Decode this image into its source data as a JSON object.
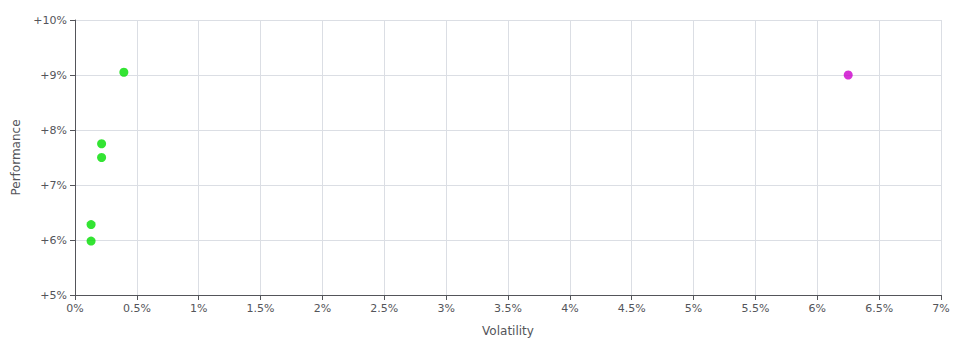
{
  "chart_data": {
    "type": "scatter",
    "xlabel": "Volatility",
    "ylabel": "Performance",
    "x": [
      0.00395,
      0.00215,
      0.00215,
      0.0013,
      0.0013,
      0.0625
    ],
    "values": [
      0.0905,
      0.0775,
      0.075,
      0.0628,
      0.0598,
      0.09
    ],
    "colors": [
      "#00dd00",
      "#00dd00",
      "#00dd00",
      "#00dd00",
      "#00dd00",
      "#cc00cc"
    ],
    "xlim": [
      0.0,
      0.07
    ],
    "xticks": [
      {
        "value": 0.0,
        "label": "0%"
      },
      {
        "value": 0.005,
        "label": "0.5%"
      },
      {
        "value": 0.01,
        "label": "1%"
      },
      {
        "value": 0.015,
        "label": "1.5%"
      },
      {
        "value": 0.02,
        "label": "2%"
      },
      {
        "value": 0.025,
        "label": "2.5%"
      },
      {
        "value": 0.03,
        "label": "3%"
      },
      {
        "value": 0.035,
        "label": "3.5%"
      },
      {
        "value": 0.04,
        "label": "4%"
      },
      {
        "value": 0.045,
        "label": "4.5%"
      },
      {
        "value": 0.05,
        "label": "5%"
      },
      {
        "value": 0.055,
        "label": "5.5%"
      },
      {
        "value": 0.06,
        "label": "6%"
      },
      {
        "value": 0.065,
        "label": "6.5%"
      },
      {
        "value": 0.07,
        "label": "7%"
      }
    ],
    "ylim": [
      0.05,
      0.1
    ],
    "yticks": [
      {
        "value": 0.05,
        "label": "+5%"
      },
      {
        "value": 0.06,
        "label": "+6%"
      },
      {
        "value": 0.07,
        "label": "+7%"
      },
      {
        "value": 0.08,
        "label": "+8%"
      },
      {
        "value": 0.09,
        "label": "+9%"
      },
      {
        "value": 0.1,
        "label": "+10%"
      }
    ],
    "grid": true
  }
}
